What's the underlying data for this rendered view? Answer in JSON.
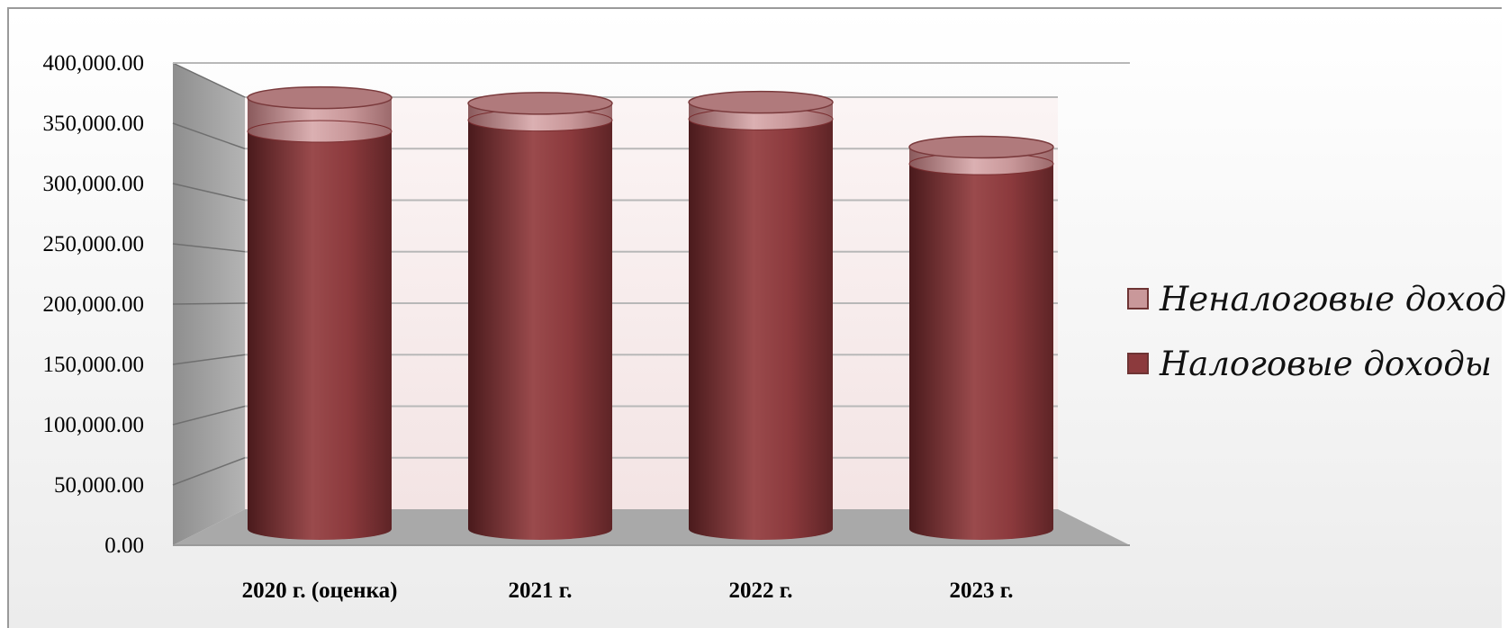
{
  "chart_data": {
    "type": "bar",
    "title": "",
    "xlabel": "",
    "ylabel": "",
    "categories": [
      "2020 г. (оценка)",
      "2021 г.",
      "2022 г.",
      "2023 г."
    ],
    "series": [
      {
        "name": "Налоговые доходы",
        "values": [
          355000,
          365000,
          366000,
          326000
        ],
        "color": "#8c3a3d"
      },
      {
        "name": "Неналоговые доходы",
        "values": [
          30000,
          15000,
          15000,
          15000
        ],
        "color": "#c9989a"
      }
    ],
    "yticks": [
      "0.00",
      "50,000.00",
      "100,000.00",
      "150,000.00",
      "200,000.00",
      "250,000.00",
      "300,000.00",
      "350,000.00",
      "400,000.00"
    ],
    "ylim": [
      0,
      400000
    ],
    "stacked": true,
    "shape": "cylinder",
    "grid": true,
    "legend_position": "right"
  },
  "legend": {
    "items": [
      {
        "label": "Неналоговые доходы",
        "color": "#c9989a"
      },
      {
        "label": "Налоговые доходы",
        "color": "#8c3a3d"
      }
    ]
  }
}
